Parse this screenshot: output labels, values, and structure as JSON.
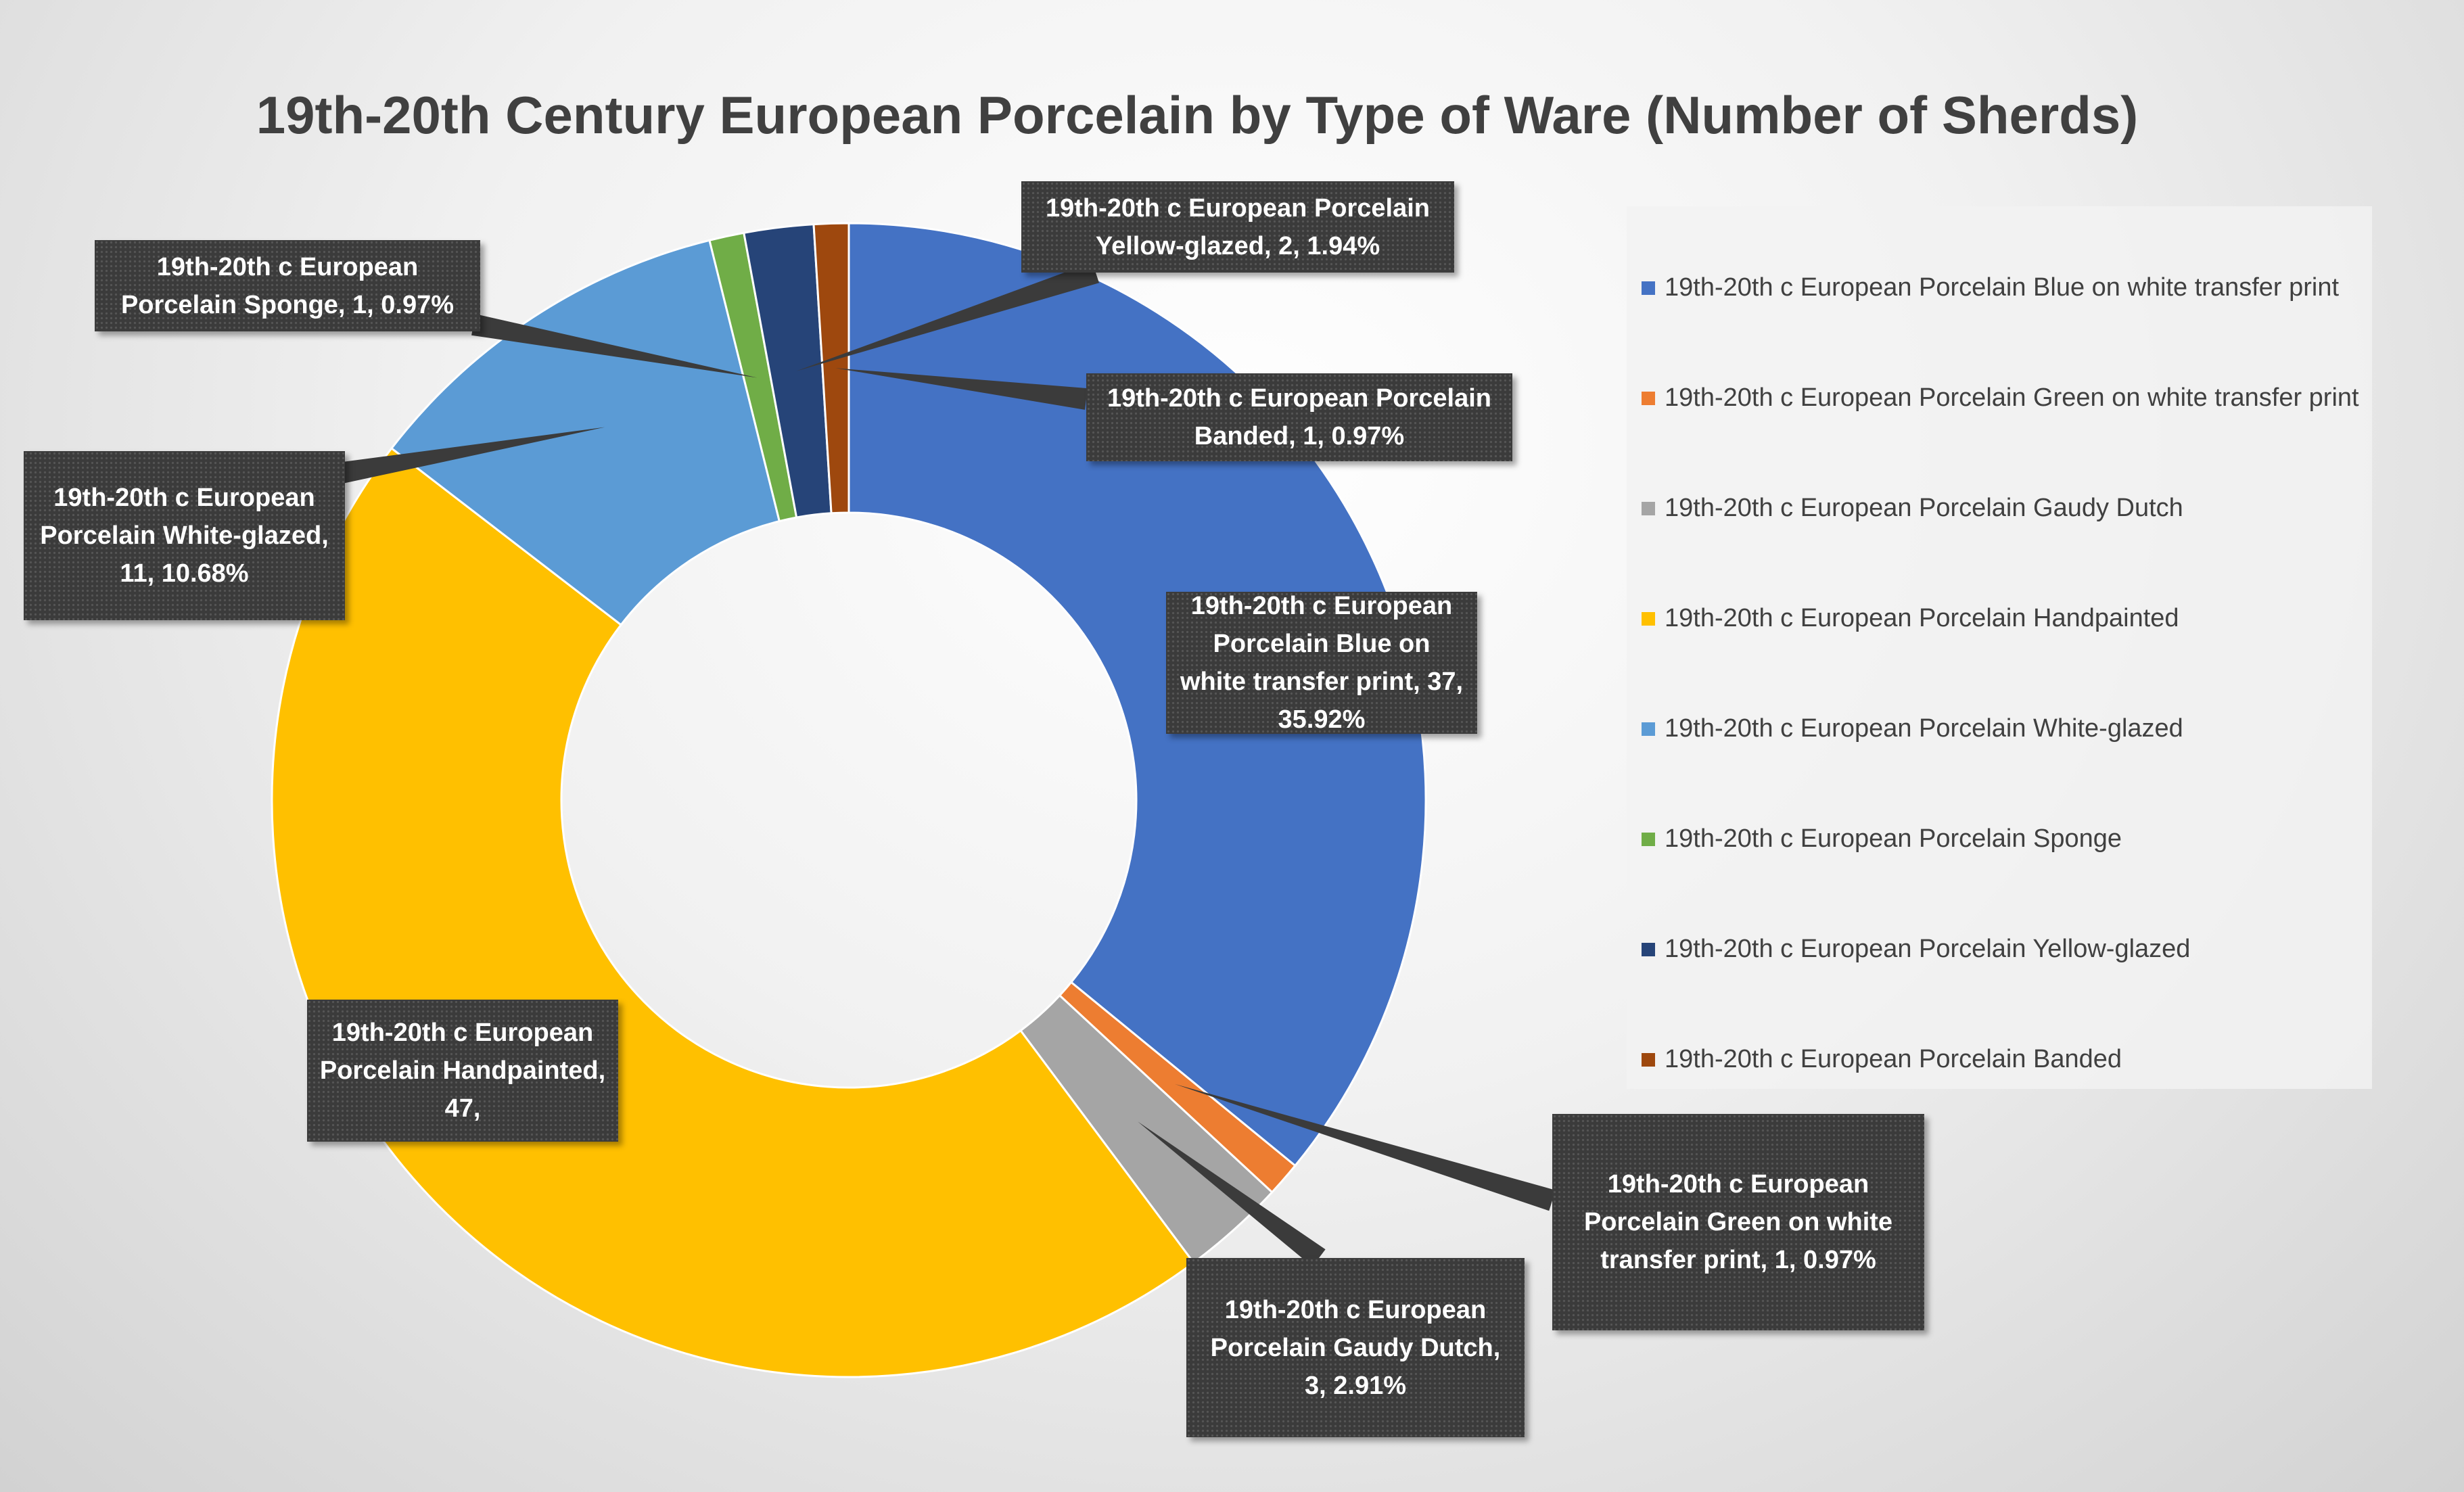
{
  "chart_data": {
    "type": "donut",
    "title": "19th-20th Century European Porcelain by Type of Ware (Number of Sherds)",
    "series": [
      {
        "name": "19th-20th c European Porcelain Blue on white transfer print",
        "value": 37,
        "percent": "35.92%",
        "color": "#4472C4",
        "label": "19th-20th c European Porcelain Blue on white transfer print, 37, 35.92%"
      },
      {
        "name": "19th-20th c European Porcelain Green on white transfer print",
        "value": 1,
        "percent": "0.97%",
        "color": "#ED7D31",
        "label": "19th-20th c European Porcelain Green on white transfer print, 1, 0.97%"
      },
      {
        "name": "19th-20th c European Porcelain Gaudy Dutch",
        "value": 3,
        "percent": "2.91%",
        "color": "#A5A5A5",
        "label": "19th-20th c European Porcelain Gaudy Dutch, 3, 2.91%"
      },
      {
        "name": "19th-20th c European Porcelain Handpainted",
        "value": 47,
        "percent": "45.63%",
        "color": "#FFC000",
        "label": "19th-20th c European Porcelain Handpainted, 47,"
      },
      {
        "name": "19th-20th c European Porcelain White-glazed",
        "value": 11,
        "percent": "10.68%",
        "color": "#5B9BD5",
        "label": "19th-20th c European Porcelain White-glazed, 11, 10.68%"
      },
      {
        "name": "19th-20th c European Porcelain Sponge",
        "value": 1,
        "percent": "0.97%",
        "color": "#70AD47",
        "label": "19th-20th c European Porcelain Sponge, 1, 0.97%"
      },
      {
        "name": "19th-20th c European Porcelain Yellow-glazed",
        "value": 2,
        "percent": "1.94%",
        "color": "#264478",
        "label": "19th-20th c European Porcelain Yellow-glazed, 2, 1.94%"
      },
      {
        "name": "19th-20th c European Porcelain Banded",
        "value": 1,
        "percent": "0.97%",
        "color": "#9E480E",
        "label": "19th-20th c European Porcelain Banded, 1, 0.97%"
      }
    ],
    "legend_position": "right"
  }
}
